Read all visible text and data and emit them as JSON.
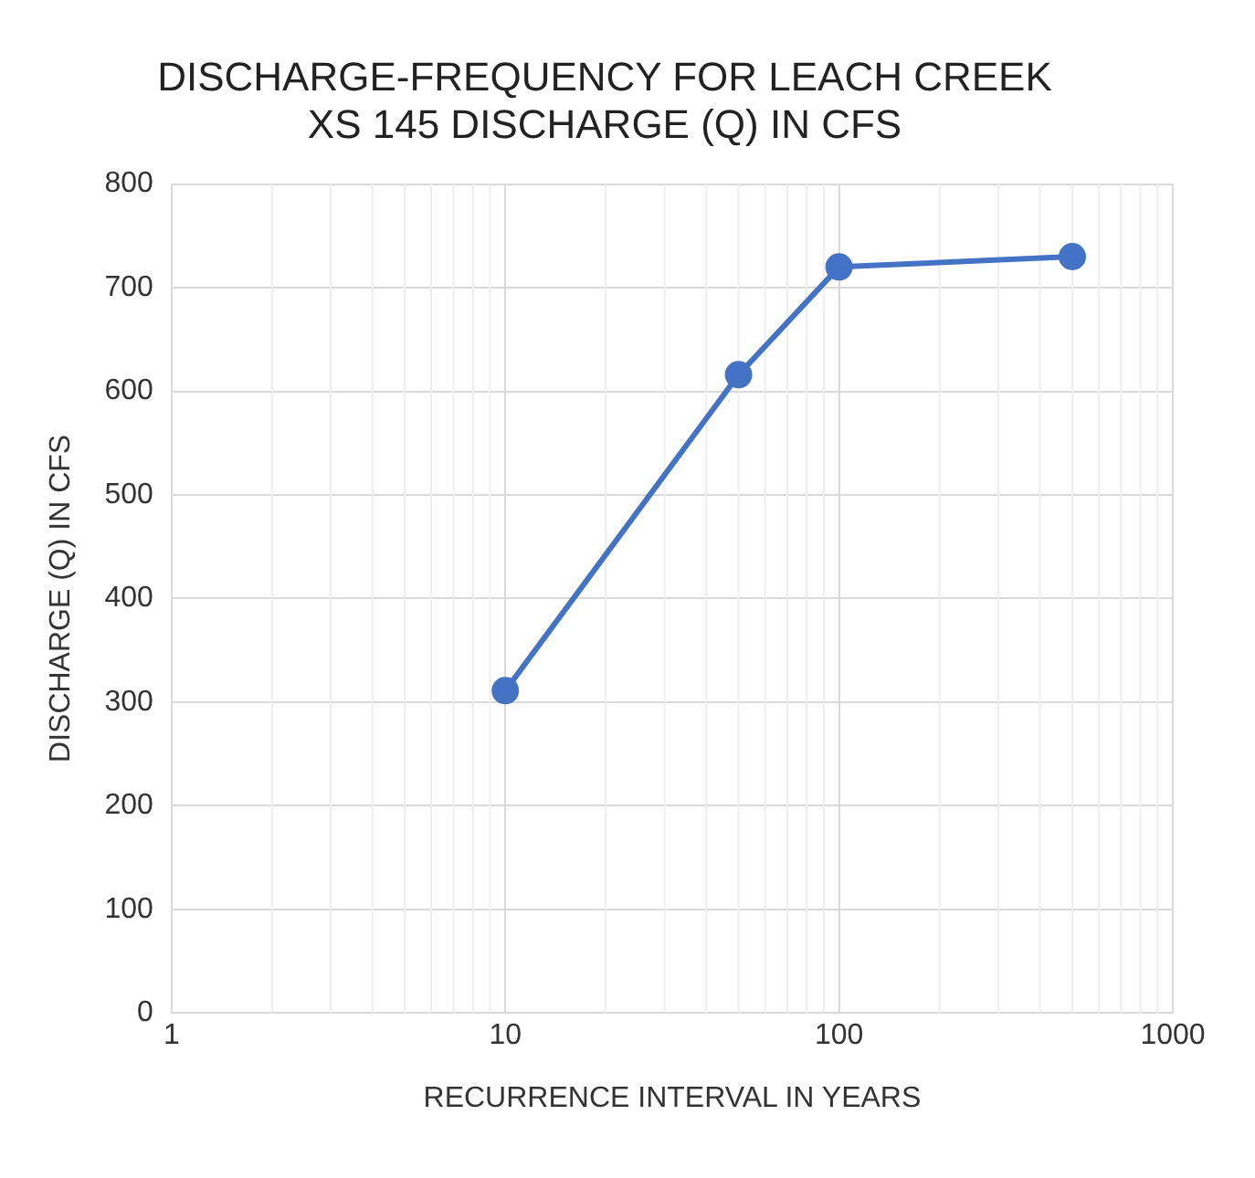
{
  "chart_data": {
    "type": "line",
    "title": "DISCHARGE-FREQUENCY FOR LEACH CREEK\nXS 145 DISCHARGE (Q) IN CFS",
    "xlabel": "RECURRENCE INTERVAL IN YEARS",
    "ylabel": "DISCHARGE (Q) IN CFS",
    "x": [
      10,
      50,
      100,
      500
    ],
    "series": [
      {
        "color": "#4472c4",
        "values": [
          311,
          616,
          720,
          730
        ]
      }
    ],
    "xlim": [
      1,
      1000
    ],
    "xticks": [
      1,
      10,
      100,
      1000
    ],
    "ylim": [
      0,
      800
    ],
    "yticks": [
      0,
      100,
      200,
      300,
      400,
      500,
      600,
      700,
      800
    ],
    "log": "x",
    "grid": true,
    "marker": "circle",
    "line_style": "solid",
    "legend": false
  }
}
